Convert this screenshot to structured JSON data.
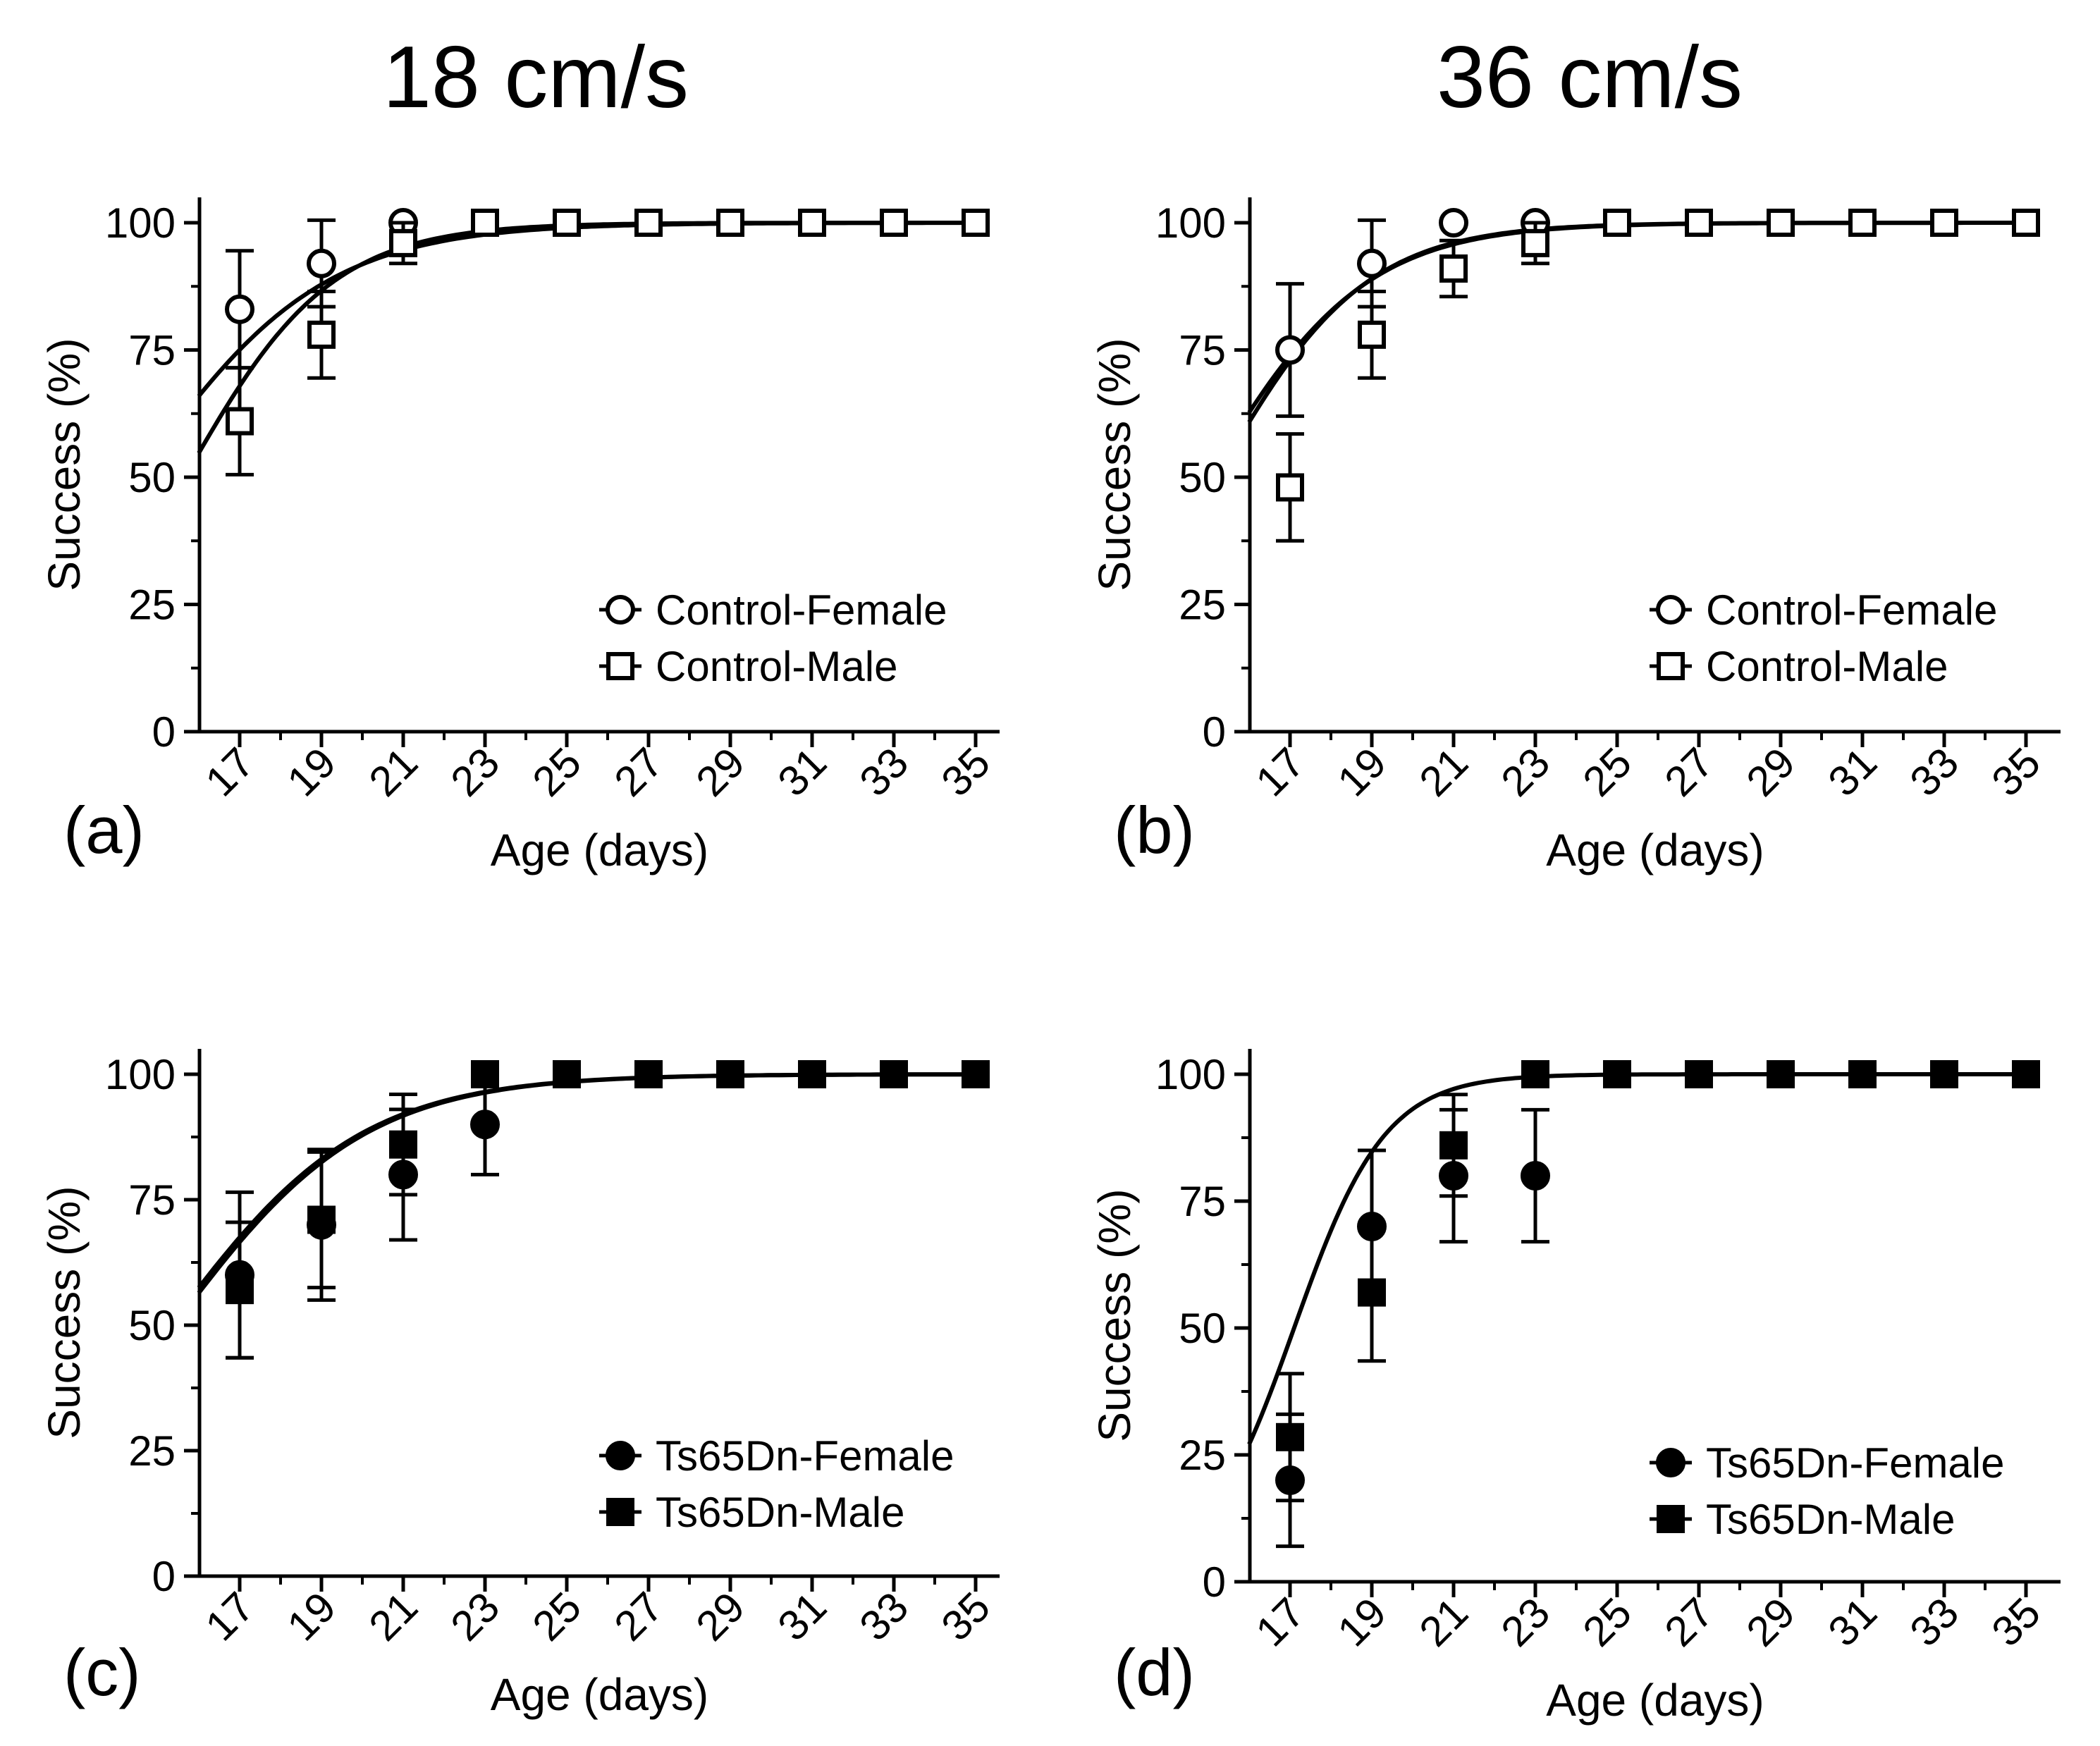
{
  "figure": {
    "column_titles": [
      "18 cm/s",
      "36 cm/s"
    ]
  },
  "chart_data": [
    {
      "panel": "(a)",
      "type": "scatter",
      "xlabel": "Age (days)",
      "ylabel": "Success (%)",
      "xlim": [
        16,
        35.5
      ],
      "ylim": [
        0,
        105
      ],
      "xticks": [
        "17",
        "19",
        "21",
        "23",
        "25",
        "27",
        "29",
        "31",
        "33",
        "35"
      ],
      "yticks": [
        "0",
        "25",
        "50",
        "75",
        "100"
      ],
      "legend_position": "bottom-right",
      "series": [
        {
          "name": "Control-Female",
          "marker": "circle-open",
          "x": [
            17,
            19,
            21
          ],
          "values": [
            83,
            92,
            100
          ],
          "err": [
            11.5,
            8.5,
            0
          ],
          "fit": {
            "k": 0.56,
            "offset": 1.16
          }
        },
        {
          "name": "Control-Male",
          "marker": "square-open",
          "x": [
            17,
            19,
            21,
            23,
            25,
            27,
            29,
            31,
            33,
            35
          ],
          "values": [
            61,
            78,
            96,
            100,
            100,
            100,
            100,
            100,
            100,
            100
          ],
          "err": [
            10.5,
            8.5,
            4,
            0,
            0,
            0,
            0,
            0,
            0,
            0
          ],
          "fit": {
            "k": 0.44,
            "offset": 0
          }
        }
      ]
    },
    {
      "panel": "(b)",
      "type": "scatter",
      "xlabel": "Age (days)",
      "ylabel": "Success (%)",
      "xlim": [
        16,
        35.5
      ],
      "ylim": [
        0,
        105
      ],
      "xticks": [
        "17",
        "19",
        "21",
        "23",
        "25",
        "27",
        "29",
        "31",
        "33",
        "35"
      ],
      "yticks": [
        "0",
        "25",
        "50",
        "75",
        "100"
      ],
      "legend_position": "bottom-right",
      "series": [
        {
          "name": "Control-Female",
          "marker": "circle-open",
          "x": [
            17,
            19,
            21,
            23
          ],
          "values": [
            75,
            92,
            100,
            100
          ],
          "err": [
            13,
            8.5,
            0,
            0
          ],
          "fit": {
            "k": 0.52,
            "offset": 0.5
          }
        },
        {
          "name": "Control-Male",
          "marker": "square-open",
          "x": [
            17,
            19,
            21,
            23,
            25,
            27,
            29,
            31,
            33,
            35
          ],
          "values": [
            48,
            78,
            91,
            96,
            100,
            100,
            100,
            100,
            100,
            100
          ],
          "err": [
            10.5,
            8.5,
            5.5,
            4,
            0,
            0,
            0,
            0,
            0,
            0
          ],
          "fit": {
            "k": 0.55,
            "offset": 0.7
          }
        }
      ]
    },
    {
      "panel": "(c)",
      "type": "scatter",
      "xlabel": "Age (days)",
      "ylabel": "Success (%)",
      "xlim": [
        16,
        35.5
      ],
      "ylim": [
        0,
        105
      ],
      "xticks": [
        "17",
        "19",
        "21",
        "23",
        "25",
        "27",
        "29",
        "31",
        "33",
        "35"
      ],
      "yticks": [
        "0",
        "25",
        "50",
        "75",
        "100"
      ],
      "legend_position": "bottom-right",
      "series": [
        {
          "name": "Ts65Dn-Female",
          "marker": "circle-filled",
          "x": [
            17,
            19,
            21,
            23
          ],
          "values": [
            60,
            70,
            80,
            90
          ],
          "err": [
            16.5,
            15,
            13,
            10
          ],
          "fit": {
            "k": 0.43,
            "offset": 0.8
          }
        },
        {
          "name": "Ts65Dn-Male",
          "marker": "square-filled",
          "x": [
            17,
            19,
            21,
            23,
            25,
            27,
            29,
            31,
            33,
            35
          ],
          "values": [
            57,
            71,
            86,
            100,
            100,
            100,
            100,
            100,
            100,
            100
          ],
          "err": [
            13.5,
            13.5,
            10,
            0,
            0,
            0,
            0,
            0,
            0,
            0
          ],
          "fit": {
            "k": 0.43,
            "offset": 0.9
          }
        }
      ]
    },
    {
      "panel": "(d)",
      "type": "scatter",
      "xlabel": "Age (days)",
      "ylabel": "Success (%)",
      "xlim": [
        16,
        35.5
      ],
      "ylim": [
        0,
        105
      ],
      "xticks": [
        "17",
        "19",
        "21",
        "23",
        "25",
        "27",
        "29",
        "31",
        "33",
        "35"
      ],
      "yticks": [
        "0",
        "25",
        "50",
        "75",
        "100"
      ],
      "legend_position": "bottom-right",
      "series": [
        {
          "name": "Ts65Dn-Female",
          "marker": "circle-filled",
          "x": [
            17,
            19,
            21,
            23
          ],
          "values": [
            20,
            70,
            80,
            80
          ],
          "err": [
            13,
            15,
            13,
            13
          ],
          "fit": null
        },
        {
          "name": "Ts65Dn-Male",
          "marker": "square-filled",
          "x": [
            17,
            19,
            21,
            23,
            25,
            27,
            29,
            31,
            33,
            35
          ],
          "values": [
            28.5,
            57,
            86,
            100,
            100,
            100,
            100,
            100,
            100,
            100
          ],
          "err": [
            12.5,
            13.5,
            10,
            0,
            0,
            0,
            0,
            0,
            0,
            0
          ],
          "fit": {
            "k": 0.9,
            "offset": 2.6
          }
        }
      ]
    }
  ]
}
